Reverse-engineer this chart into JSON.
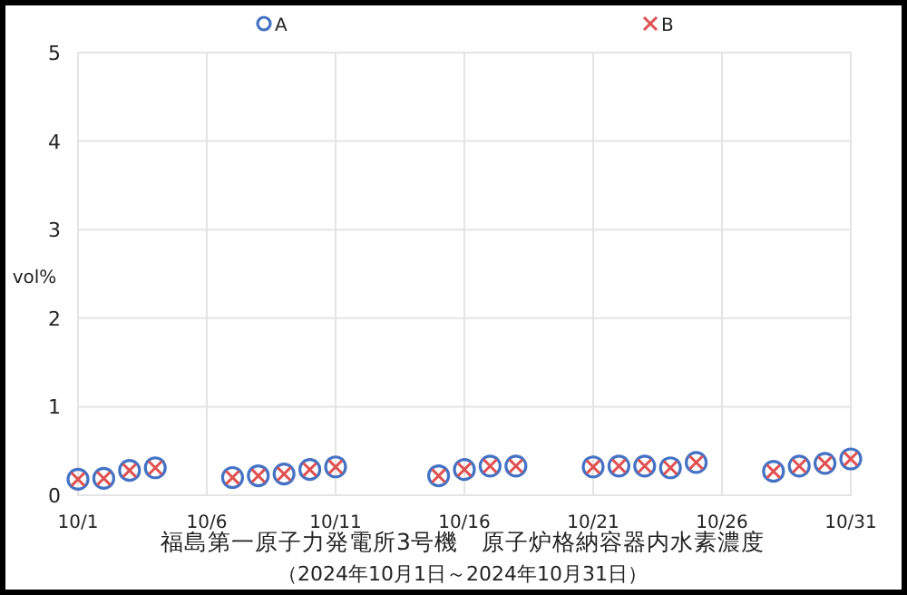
{
  "chart_data": {
    "type": "scatter",
    "title": "福島第一原子力発電所3号機　原子炉格納容器内水素濃度",
    "subtitle": "（2024年10月1日～2024年10月31日）",
    "ylabel": "vol%",
    "x": [
      "2024-10-01",
      "2024-10-02",
      "2024-10-03",
      "2024-10-04",
      "2024-10-07",
      "2024-10-08",
      "2024-10-09",
      "2024-10-10",
      "2024-10-11",
      "2024-10-15",
      "2024-10-16",
      "2024-10-17",
      "2024-10-18",
      "2024-10-21",
      "2024-10-22",
      "2024-10-23",
      "2024-10-24",
      "2024-10-25",
      "2024-10-28",
      "2024-10-29",
      "2024-10-30",
      "2024-10-31"
    ],
    "series": [
      {
        "name": "A",
        "color": "#4472c4",
        "marker": "circle",
        "values": [
          0.18,
          0.19,
          0.28,
          0.31,
          0.2,
          0.22,
          0.24,
          0.29,
          0.32,
          0.22,
          0.29,
          0.33,
          0.33,
          0.32,
          0.33,
          0.33,
          0.31,
          0.37,
          0.27,
          0.33,
          0.36,
          0.41
        ]
      },
      {
        "name": "B",
        "color": "#e05050",
        "marker": "cross",
        "values": [
          0.18,
          0.19,
          0.28,
          0.31,
          0.2,
          0.22,
          0.24,
          0.29,
          0.32,
          0.22,
          0.29,
          0.33,
          0.33,
          0.32,
          0.33,
          0.33,
          0.31,
          0.37,
          0.27,
          0.33,
          0.36,
          0.41
        ]
      }
    ],
    "xlim": [
      "2024-10-01",
      "2024-10-31"
    ],
    "xticks": [
      {
        "value": "2024-10-01",
        "label": "10/1"
      },
      {
        "value": "2024-10-06",
        "label": "10/6"
      },
      {
        "value": "2024-10-11",
        "label": "10/11"
      },
      {
        "value": "2024-10-16",
        "label": "10/16"
      },
      {
        "value": "2024-10-21",
        "label": "10/21"
      },
      {
        "value": "2024-10-26",
        "label": "10/26"
      },
      {
        "value": "2024-10-31",
        "label": "10/31"
      }
    ],
    "ylim": [
      0,
      5
    ],
    "yticks": [
      0,
      1,
      2,
      3,
      4,
      5
    ],
    "grid": true,
    "legend": "top"
  }
}
